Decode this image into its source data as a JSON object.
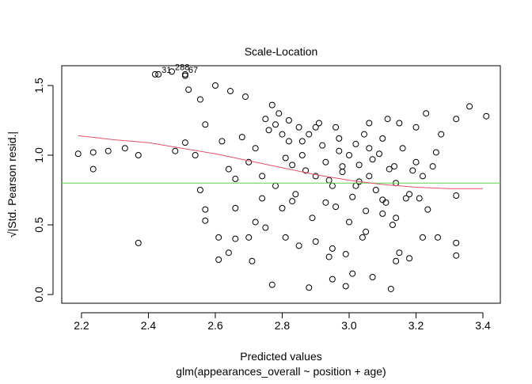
{
  "chart_data": {
    "type": "scatter",
    "title": "Scale-Location",
    "x_label": "Predicted values",
    "subtitle": "glm(appearances_overall ~ position + age)",
    "y_label": "√|Std. Pearson resid.|",
    "xlim": [
      2.141,
      3.452
    ],
    "ylim": [
      -0.0625,
      1.642
    ],
    "xticks": [
      2.2,
      2.4,
      2.6,
      2.8,
      {
        "value": 3,
        "label": "3.0"
      },
      3.2,
      3.4
    ],
    "yticks": [
      {
        "value": 0,
        "label": "0.0"
      },
      {
        "value": 0.5,
        "label": "0.5"
      },
      {
        "value": 1,
        "label": "1.0"
      },
      {
        "value": 1.5,
        "label": "1.5"
      }
    ],
    "grid": false,
    "point_color": "#000000",
    "x": [
      2.19,
      2.235,
      2.235,
      2.28,
      2.33,
      2.37,
      2.37,
      2.42,
      2.48,
      2.51,
      2.51,
      2.52,
      2.54,
      2.555,
      2.555,
      2.57,
      2.57,
      2.57,
      2.6,
      2.61,
      2.61,
      2.64,
      2.645,
      2.66,
      2.66,
      2.66,
      2.69,
      2.7,
      2.71,
      2.72,
      2.74,
      2.75,
      2.77,
      2.77,
      2.8,
      2.81,
      2.81,
      2.83,
      2.85,
      2.87,
      2.88,
      2.9,
      2.91,
      2.93,
      2.94,
      2.95,
      2.96,
      2.97,
      2.99,
      2.99,
      3.0,
      3.01,
      3.03,
      3.04,
      3.045,
      3.06,
      3.07,
      3.09,
      3.1,
      3.115,
      3.125,
      3.135,
      3.14,
      3.15,
      3.17,
      3.18,
      3.19,
      3.2,
      3.21,
      3.22,
      3.23,
      3.235,
      3.25,
      3.26,
      3.265,
      3.275,
      3.32,
      3.32,
      3.32,
      3.32,
      3.36,
      3.41,
      2.47,
      2.43,
      2.51,
      2.62,
      2.64,
      2.68,
      2.7,
      2.72,
      2.74,
      2.76,
      2.78,
      2.79,
      2.8,
      2.82,
      2.83,
      2.84,
      2.86,
      2.88,
      2.89,
      2.9,
      2.92,
      2.93,
      2.95,
      2.96,
      2.97,
      2.98,
      3.0,
      3.01,
      3.02,
      3.03,
      3.05,
      3.06,
      3.07,
      3.08,
      3.1,
      3.11,
      3.12,
      3.13,
      3.14,
      3.16,
      3.18,
      3.2,
      3.22,
      2.78,
      2.82,
      2.86,
      2.9,
      2.94,
      2.98,
      3.02,
      3.06,
      3.1,
      3.14,
      2.75,
      2.85,
      2.95,
      3.05,
      3.15
    ],
    "y": [
      1.01,
      1.02,
      0.9,
      1.03,
      1.05,
      1.0,
      0.37,
      1.58,
      1.03,
      1.57,
      1.09,
      1.47,
      1.0,
      1.4,
      0.75,
      1.22,
      0.61,
      0.53,
      1.5,
      0.41,
      0.25,
      0.3,
      1.46,
      0.4,
      0.62,
      0.83,
      1.42,
      0.41,
      0.24,
      0.52,
      0.69,
      1.26,
      0.07,
      1.36,
      1.15,
      0.98,
      0.41,
      0.67,
      1.2,
      0.89,
      0.05,
      0.38,
      1.23,
      0.66,
      0.27,
      0.11,
      1.2,
      1.03,
      0.29,
      0.06,
      0.52,
      0.15,
      0.81,
      0.41,
      1.15,
      1.23,
      0.125,
      1.01,
      0.58,
      1.26,
      0.04,
      0.92,
      0.24,
      1.23,
      0.69,
      0.26,
      0.89,
      1.2,
      0.69,
      0.41,
      1.3,
      0.61,
      0.92,
      1.02,
      0.41,
      1.15,
      0.71,
      1.26,
      0.37,
      0.28,
      1.35,
      1.28,
      1.6,
      1.58,
      1.58,
      1.1,
      0.9,
      1.13,
      0.95,
      1.05,
      0.85,
      1.18,
      0.78,
      1.3,
      0.62,
      1.1,
      0.93,
      0.72,
      1.0,
      1.15,
      0.55,
      0.85,
      1.07,
      0.95,
      0.78,
      0.63,
      1.12,
      0.88,
      1.0,
      0.7,
      1.08,
      0.93,
      0.6,
      0.85,
      0.97,
      0.75,
      1.12,
      0.66,
      0.9,
      0.5,
      0.8,
      1.05,
      0.72,
      0.95,
      0.85,
      1.22,
      1.25,
      1.1,
      1.2,
      0.82,
      0.92,
      0.78,
      1.05,
      0.68,
      0.55,
      0.48,
      0.35,
      0.33,
      0.45,
      0.3
    ],
    "smooth": {
      "color": "#DF536B",
      "x": [
        2.19,
        2.3,
        2.4,
        2.5,
        2.6,
        2.7,
        2.8,
        2.9,
        3.0,
        3.1,
        3.2,
        3.3,
        3.4
      ],
      "y": [
        1.14,
        1.11,
        1.09,
        1.05,
        1.01,
        0.96,
        0.91,
        0.86,
        0.82,
        0.79,
        0.77,
        0.76,
        0.76
      ]
    },
    "hline": {
      "value": 0.8,
      "color": "#61D04F"
    },
    "annotations": [
      {
        "text": "288",
        "x": 2.47,
        "y": 1.6
      },
      {
        "text": "31",
        "x": 2.43,
        "y": 1.58
      },
      {
        "text": "67",
        "x": 2.51,
        "y": 1.58
      }
    ]
  }
}
